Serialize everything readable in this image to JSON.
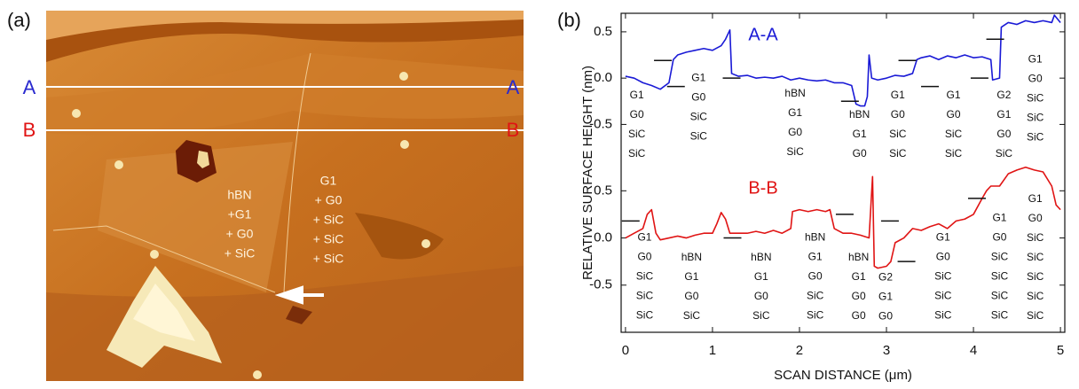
{
  "panel_a": {
    "label": "(a)",
    "line_labels": [
      "A",
      "B"
    ],
    "regions": [
      [
        "hBN",
        "+G1",
        "+ G0",
        "+ SiC"
      ],
      [
        "G1",
        "+ G0",
        "+ SiC",
        "+ SiC",
        "+ SiC"
      ]
    ]
  },
  "panel_b": {
    "label": "(b)",
    "ylabel": "RELATIVE SURFACE HEIGHT (nm)",
    "xlabel": "SCAN DISTANCE (μm)"
  },
  "chart_data": [
    {
      "type": "line",
      "x": [
        0,
        0.1,
        0.2,
        0.3,
        0.4,
        0.5,
        0.55,
        0.6,
        0.7,
        0.8,
        0.9,
        1.0,
        1.1,
        1.15,
        1.2,
        1.22,
        1.3,
        1.4,
        1.5,
        1.6,
        1.7,
        1.8,
        1.9,
        2.0,
        2.1,
        2.2,
        2.3,
        2.4,
        2.5,
        2.6,
        2.65,
        2.7,
        2.75,
        2.78,
        2.8,
        2.83,
        2.9,
        3.0,
        3.1,
        3.2,
        3.3,
        3.35,
        3.4,
        3.5,
        3.6,
        3.7,
        3.8,
        3.9,
        4.0,
        4.1,
        4.2,
        4.22,
        4.3,
        4.32,
        4.4,
        4.5,
        4.6,
        4.7,
        4.8,
        4.9,
        4.93,
        5.0
      ],
      "series": [
        {
          "name": "A-A",
          "color": "#1a1ad6",
          "values": [
            0.02,
            0.0,
            -0.05,
            -0.08,
            -0.12,
            -0.05,
            0.2,
            0.25,
            0.28,
            0.3,
            0.32,
            0.3,
            0.35,
            0.42,
            0.52,
            0.05,
            0.02,
            0.03,
            0.0,
            0.01,
            0.0,
            0.02,
            -0.02,
            0.0,
            -0.02,
            -0.03,
            -0.02,
            -0.05,
            -0.05,
            -0.08,
            -0.28,
            -0.3,
            -0.3,
            -0.2,
            0.25,
            0.0,
            -0.02,
            0.0,
            0.03,
            0.02,
            0.05,
            0.2,
            0.22,
            0.24,
            0.2,
            0.24,
            0.22,
            0.25,
            0.22,
            0.23,
            0.2,
            -0.02,
            0.0,
            0.55,
            0.6,
            0.58,
            0.62,
            0.6,
            0.62,
            0.6,
            0.68,
            0.6
          ]
        }
      ],
      "xlim": [
        -0.05,
        5.05
      ],
      "xticks": [
        0,
        1,
        2,
        3,
        4,
        5
      ],
      "ylim": [
        -0.85,
        0.7
      ],
      "yticks": [
        0.5,
        {
          "value": 0,
          "label": "0.0"
        },
        -0.5
      ],
      "level_marks": [
        {
          "x": 0.43,
          "y": 0.19
        },
        {
          "x": 0.58,
          "y": -0.09
        },
        {
          "x": 1.22,
          "y": 0.0
        },
        {
          "x": 2.58,
          "y": -0.25
        },
        {
          "x": 3.24,
          "y": 0.19
        },
        {
          "x": 3.5,
          "y": -0.09
        },
        {
          "x": 4.07,
          "y": 0.0
        },
        {
          "x": 4.25,
          "y": 0.42
        }
      ],
      "annotations": [
        {
          "x": 0.13,
          "y": -0.19,
          "lines": [
            "G1",
            "G0",
            "SiC",
            "SiC"
          ]
        },
        {
          "x": 0.84,
          "y": 0.0,
          "lines": [
            "G1",
            "G0",
            "SiC",
            "SiC"
          ]
        },
        {
          "x": 1.95,
          "y": -0.17,
          "lines": [
            "hBN",
            "G1",
            "G0",
            "SiC"
          ]
        },
        {
          "x": 2.69,
          "y": -0.4,
          "lines": [
            "hBN",
            "G1",
            "G0"
          ]
        },
        {
          "x": 3.13,
          "y": -0.19,
          "lines": [
            "G1",
            "G0",
            "SiC",
            "SiC"
          ]
        },
        {
          "x": 3.77,
          "y": -0.19,
          "lines": [
            "G1",
            "G0",
            "SiC",
            "SiC"
          ]
        },
        {
          "x": 4.35,
          "y": -0.19,
          "lines": [
            "G2",
            "G1",
            "G0",
            "SiC"
          ]
        },
        {
          "x": 4.71,
          "y": 0.2,
          "lines": [
            "G1",
            "G0",
            "SiC",
            "SiC",
            "SiC"
          ]
        }
      ]
    },
    {
      "type": "line",
      "x": [
        0,
        0.1,
        0.2,
        0.25,
        0.3,
        0.35,
        0.4,
        0.5,
        0.6,
        0.7,
        0.8,
        0.9,
        1.0,
        1.05,
        1.1,
        1.15,
        1.2,
        1.3,
        1.4,
        1.5,
        1.6,
        1.7,
        1.8,
        1.9,
        1.92,
        2.0,
        2.1,
        2.2,
        2.3,
        2.35,
        2.4,
        2.5,
        2.6,
        2.7,
        2.8,
        2.84,
        2.86,
        2.9,
        3.0,
        3.05,
        3.1,
        3.2,
        3.3,
        3.4,
        3.5,
        3.6,
        3.7,
        3.8,
        3.9,
        4.0,
        4.1,
        4.15,
        4.2,
        4.3,
        4.4,
        4.5,
        4.6,
        4.7,
        4.8,
        4.9,
        4.95,
        5.0
      ],
      "series": [
        {
          "name": "B-B",
          "color": "#e01414",
          "values": [
            0.0,
            0.05,
            0.1,
            0.25,
            0.3,
            0.05,
            -0.02,
            0.0,
            0.02,
            0.0,
            0.03,
            0.05,
            0.05,
            0.15,
            0.27,
            0.2,
            0.05,
            0.05,
            0.05,
            0.07,
            0.05,
            0.08,
            0.05,
            0.1,
            0.28,
            0.3,
            0.28,
            0.3,
            0.28,
            0.3,
            0.1,
            0.05,
            0.05,
            0.03,
            0.0,
            0.65,
            -0.3,
            -0.32,
            -0.3,
            -0.25,
            -0.05,
            0.0,
            0.1,
            0.08,
            0.12,
            0.15,
            0.1,
            0.18,
            0.2,
            0.25,
            0.42,
            0.5,
            0.55,
            0.55,
            0.68,
            0.72,
            0.75,
            0.72,
            0.7,
            0.55,
            0.35,
            0.3
          ]
        }
      ],
      "xlim": [
        -0.05,
        5.05
      ],
      "xticks": [
        0,
        1,
        2,
        3,
        4,
        5
      ],
      "ylim": [
        -1.0,
        0.86
      ],
      "yticks": [
        0.5,
        {
          "value": 0,
          "label": "0.0"
        },
        -0.5
      ],
      "level_marks": [
        {
          "x": 0.06,
          "y": 0.18
        },
        {
          "x": 1.23,
          "y": 0.0
        },
        {
          "x": 2.52,
          "y": 0.25
        },
        {
          "x": 3.04,
          "y": 0.18
        },
        {
          "x": 3.23,
          "y": -0.25
        },
        {
          "x": 4.04,
          "y": 0.42
        }
      ],
      "annotations": [
        {
          "x": 0.22,
          "y": 0.0,
          "lines": [
            "G1",
            "G0",
            "SiC",
            "SiC",
            "SiC"
          ]
        },
        {
          "x": 0.76,
          "y": -0.21,
          "lines": [
            "hBN",
            "G1",
            "G0",
            "SiC"
          ]
        },
        {
          "x": 1.56,
          "y": -0.21,
          "lines": [
            "hBN",
            "G1",
            "G0",
            "SiC"
          ]
        },
        {
          "x": 2.18,
          "y": 0.0,
          "lines": [
            "hBN",
            "G1",
            "G0",
            "SiC",
            "SiC"
          ]
        },
        {
          "x": 2.68,
          "y": -0.21,
          "lines": [
            "hBN",
            "G1",
            "G0",
            "G0"
          ]
        },
        {
          "x": 2.99,
          "y": -0.42,
          "lines": [
            "G2",
            "G1",
            "G0"
          ]
        },
        {
          "x": 3.65,
          "y": 0.0,
          "lines": [
            "G1",
            "G0",
            "SiC",
            "SiC",
            "SiC"
          ]
        },
        {
          "x": 4.3,
          "y": 0.21,
          "lines": [
            "G1",
            "G0",
            "SiC",
            "SiC",
            "SiC",
            "SiC"
          ]
        },
        {
          "x": 4.71,
          "y": 0.41,
          "lines": [
            "G1",
            "G0",
            "SiC",
            "SiC",
            "SiC",
            "SiC",
            "SiC"
          ]
        }
      ]
    }
  ]
}
